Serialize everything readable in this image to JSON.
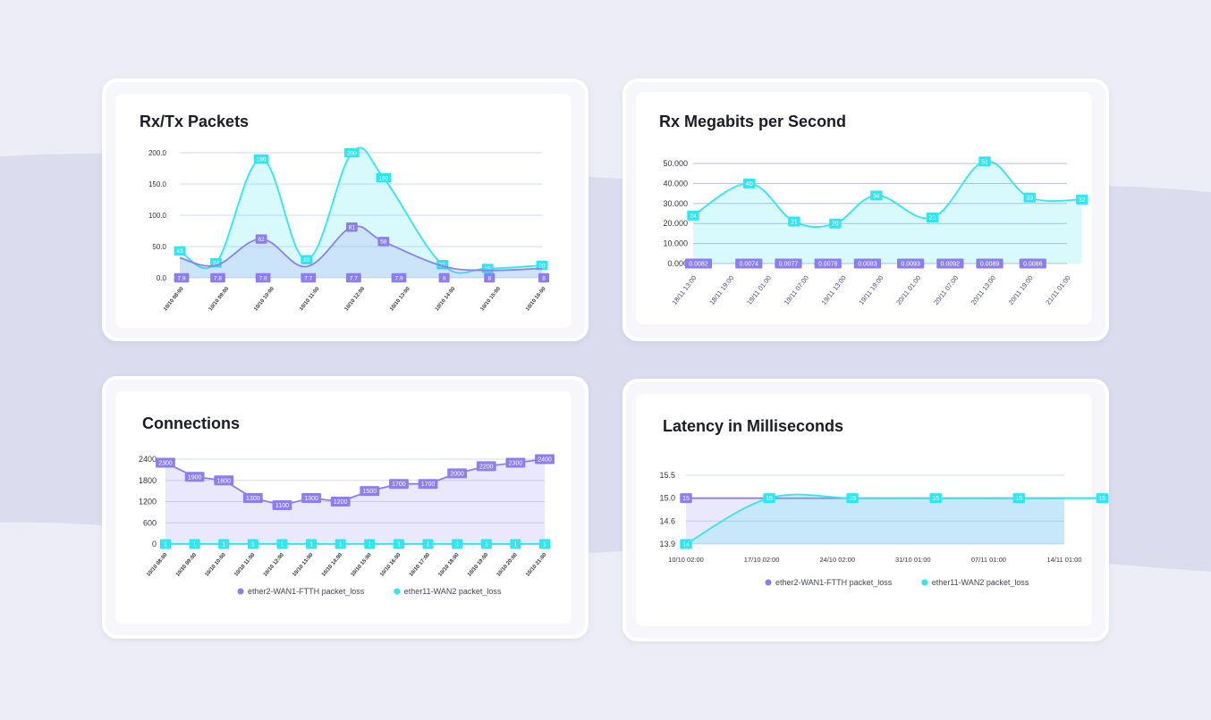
{
  "colors": {
    "purple": "#8d7ef0",
    "cyan": "#2fe6f2",
    "grid": "#d6d9ee",
    "axis": "#333344"
  },
  "chart_data": [
    {
      "type": "area",
      "title": "Rx/Tx Packets",
      "categories": [
        "10/10 08:00",
        "10/10 09:00",
        "10/10 10:00",
        "10/10 11:00",
        "10/10 12:00",
        "10/10 13:00",
        "10/10 14:00",
        "10/10 15:00",
        "10/10 16:00"
      ],
      "x": [
        0,
        1,
        2,
        3,
        4,
        5,
        6,
        7,
        8
      ],
      "yticks": [
        "0.0",
        "50.0",
        "100.0",
        "150.0",
        "200.0"
      ],
      "ylim": [
        0,
        200
      ],
      "grid": true,
      "series": [
        {
          "color": "cyan",
          "x": [
            0,
            0.8,
            1.8,
            2.8,
            3.8,
            4.5,
            5.8,
            6.8,
            8
          ],
          "values": [
            43,
            24,
            190,
            29,
            200,
            160,
            21,
            15,
            20
          ],
          "labels": [
            "43",
            "24",
            "190",
            "29",
            "200",
            "160",
            "21",
            "15",
            "20"
          ]
        },
        {
          "color": "purple",
          "x": [
            0,
            0.8,
            1.8,
            2.8,
            3.8,
            4.5,
            5.8,
            6.8,
            8
          ],
          "values": [
            32,
            20,
            62,
            18,
            81,
            58,
            19,
            12,
            15
          ],
          "labels": [
            "",
            "",
            "62",
            "",
            "81",
            "58",
            "",
            "",
            ""
          ]
        }
      ],
      "baseline_labels": {
        "color": "purple",
        "x": [
          0,
          0.8,
          1.8,
          2.8,
          3.8,
          4.8,
          5.8,
          6.8,
          8
        ],
        "labels": [
          "7.9",
          "7.8",
          "7.8",
          "7.7",
          "7.7",
          "7.9",
          "8",
          "8",
          "8"
        ]
      }
    },
    {
      "type": "area",
      "title": "Rx Megabits per Second",
      "categories": [
        "18/11 13:00",
        "18/11 19:00",
        "19/11 01:00",
        "19/11 07:00",
        "19/11 13:00",
        "19/11 19:00",
        "20/11 01:00",
        "20/11 07:00",
        "20/11 13:00",
        "20/11 19:00",
        "21/11 01:00"
      ],
      "x": [
        0,
        1,
        2,
        3,
        4,
        5,
        6,
        7,
        8,
        9,
        10
      ],
      "yticks": [
        "0.000",
        "10.000",
        "20.000",
        "30.000",
        "40.000",
        "50.000"
      ],
      "ylim": [
        0,
        50
      ],
      "grid": true,
      "series": [
        {
          "color": "cyan",
          "x": [
            0,
            1.5,
            2.7,
            3.8,
            4.9,
            6.4,
            7.8,
            9,
            10.4
          ],
          "values": [
            24,
            40,
            21,
            20,
            34,
            23,
            51,
            33,
            32
          ],
          "labels": [
            "24",
            "40",
            "21",
            "20",
            "34",
            "23",
            "51",
            "33",
            "32"
          ]
        }
      ],
      "baseline_labels": {
        "color": "purple",
        "x": [
          0,
          1.4,
          2.5,
          3.6,
          4.7,
          5.9,
          7.0,
          8.1,
          9.3
        ],
        "labels": [
          "0.0082",
          "0.0074",
          "0.0077",
          "0.0078",
          "0.0083",
          "0.0093",
          "0.0092",
          "0.0089",
          "0.0086"
        ]
      }
    },
    {
      "type": "area",
      "title": "Connections",
      "categories": [
        "10/10 08:00",
        "10/10 09:00",
        "10/10 10:00",
        "10/10 11:00",
        "10/10 12:00",
        "10/10 13:00",
        "10/10 14:00",
        "10/10 15:00",
        "10/10 16:00",
        "10/10 17:00",
        "10/10 18:00",
        "10/10 19:00",
        "10/10 20:00",
        "10/10 21:00"
      ],
      "x": [
        0,
        1,
        2,
        3,
        4,
        5,
        6,
        7,
        8,
        9,
        10,
        11,
        12,
        13
      ],
      "yticks": [
        "0",
        "600",
        "1200",
        "1800",
        "2400"
      ],
      "ylim": [
        0,
        2400
      ],
      "grid": true,
      "series": [
        {
          "name": "ether2-WAN1-FTTH packet_loss",
          "color": "purple",
          "x": [
            0,
            1,
            2,
            3,
            4,
            5,
            6,
            7,
            8,
            9,
            10,
            11,
            12,
            13
          ],
          "values": [
            2300,
            1900,
            1800,
            1300,
            1100,
            1300,
            1200,
            1500,
            1700,
            1700,
            2000,
            2200,
            2300,
            2400
          ],
          "labels": [
            "2300",
            "1900",
            "1800",
            "1300",
            "1100",
            "1300",
            "1200",
            "1500",
            "1700",
            "1700",
            "2000",
            "2200",
            "2300",
            "2400"
          ]
        },
        {
          "name": "ether11-WAN2 packet_loss",
          "color": "cyan",
          "x": [
            0,
            1,
            2,
            3,
            4,
            5,
            6,
            7,
            8,
            9,
            10,
            11,
            12,
            13
          ],
          "values": [
            1,
            1,
            1,
            1,
            1,
            1,
            1,
            1,
            1,
            1,
            1,
            1,
            1,
            1
          ],
          "labels": [
            "1",
            "1",
            "1",
            "1",
            "1",
            "1",
            "1",
            "1",
            "1",
            "1",
            "1",
            "1",
            "1",
            "1"
          ]
        }
      ],
      "legend": "bottom-center"
    },
    {
      "type": "area",
      "title": "Latency in Milliseconds",
      "categories": [
        "10/10 02:00",
        "17/10 02:00",
        "24/10 02:00",
        "31/10 01:00",
        "07/11 01:00",
        "14/11 01:00"
      ],
      "x": [
        0,
        1,
        2,
        3,
        4,
        5
      ],
      "yticks": [
        "13.9",
        "14.6",
        "15.0",
        "15.5"
      ],
      "ylim": [
        0,
        3
      ],
      "grid": true,
      "series": [
        {
          "name": "ether2-WAN1-FTTH packet_loss",
          "color": "purple",
          "x": [
            0,
            1.1
          ],
          "values": [
            2,
            2
          ],
          "labels": [
            "15",
            ""
          ]
        },
        {
          "name": "ether11-WAN2 packet_loss",
          "color": "cyan",
          "x": [
            0,
            1.1,
            2.2,
            3.3,
            4.4,
            5.5
          ],
          "values": [
            0,
            2,
            2,
            2,
            2,
            2
          ],
          "labels": [
            "14",
            "15",
            "15",
            "15",
            "15",
            "15"
          ]
        }
      ],
      "legend": "bottom-center"
    }
  ]
}
